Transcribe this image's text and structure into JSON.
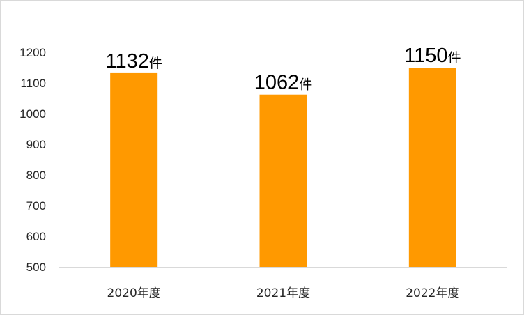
{
  "chart_data": {
    "type": "bar",
    "categories": [
      "2020年度",
      "2021年度",
      "2022年度"
    ],
    "values": [
      1132,
      1062,
      1150
    ],
    "data_labels": [
      "1132",
      "1062",
      "1150"
    ],
    "unit": "件",
    "ylim": [
      500,
      1200
    ],
    "yticks": [
      500,
      600,
      700,
      800,
      900,
      1000,
      1100,
      1200
    ],
    "grid": false,
    "legend": "none",
    "bar_color": "#FF9900",
    "axis_color": "#d9d9d9"
  }
}
